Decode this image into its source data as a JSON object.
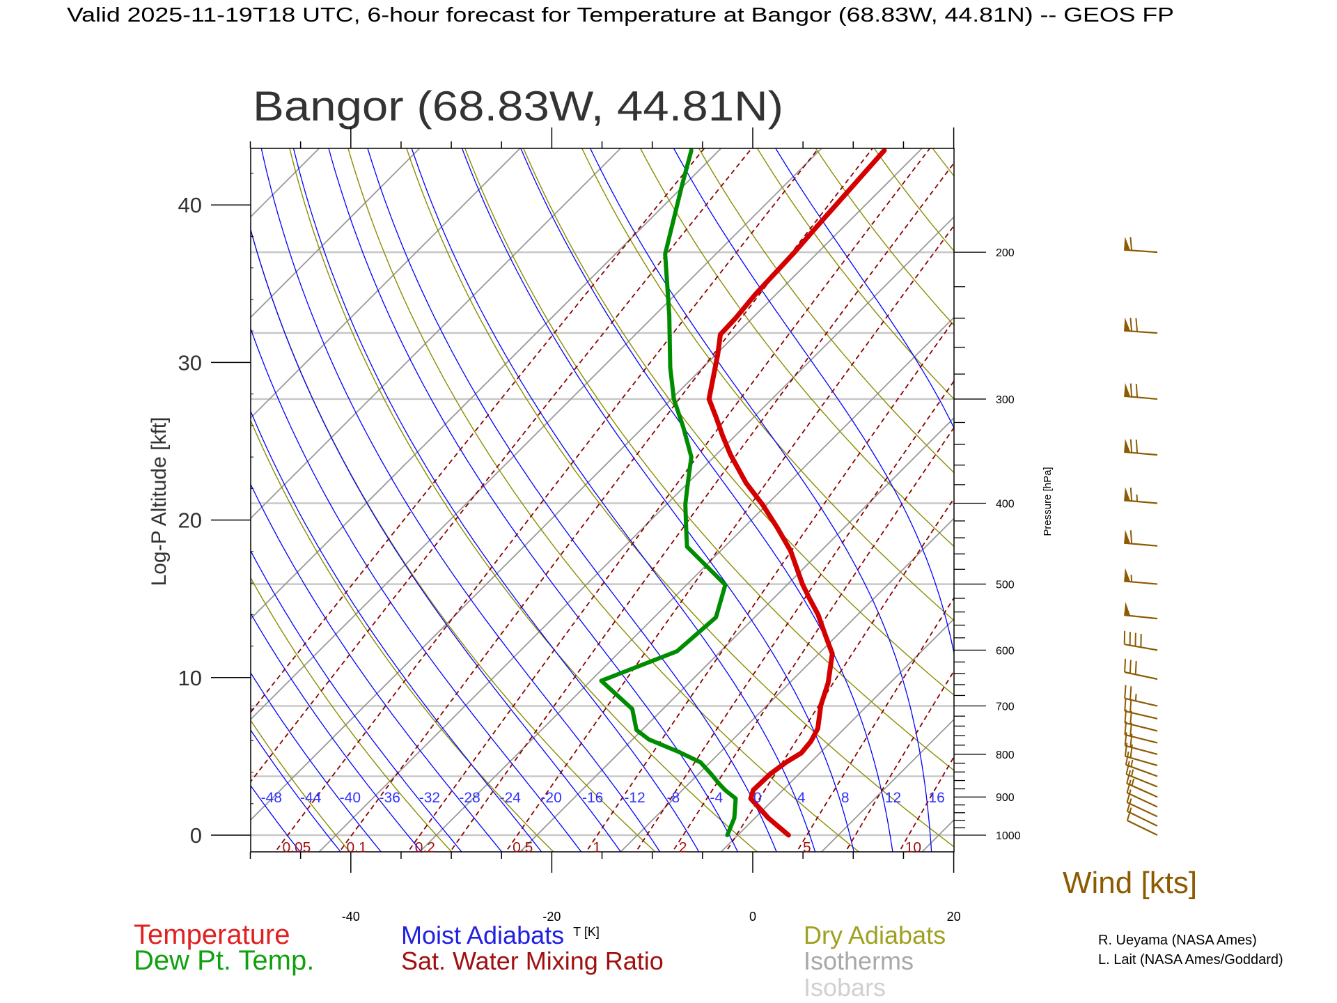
{
  "header": {
    "title": "Valid 2025-11-19T18 UTC, 6-hour forecast for Temperature at Bangor (68.83W, 44.81N) -- GEOS FP"
  },
  "chart_data": {
    "type": "line",
    "subtype": "skew-T log-P diagram",
    "title": "Bangor (68.83W, 44.81N)",
    "xlabel": "T [K]",
    "ylabel_left": "Log-P Altitude [kft]",
    "ylabel_right": "Pressure [hPa]",
    "x_ticks": [
      "-40",
      "-20",
      "0",
      "20"
    ],
    "x_tick_values": [
      -40,
      -20,
      0,
      20
    ],
    "xlim": [
      -50,
      20
    ],
    "altitude_ticks": [
      "0",
      "10",
      "20",
      "30",
      "40"
    ],
    "altitude_tick_values": [
      0,
      10,
      20,
      30,
      40
    ],
    "pressure_ticks": [
      "200",
      "300",
      "400",
      "500",
      "600",
      "700",
      "800",
      "900",
      "1000"
    ],
    "pressure_tick_values": [
      200,
      300,
      400,
      500,
      600,
      700,
      800,
      900,
      1000
    ],
    "pressure_range_hpa": [
      151,
      1047
    ],
    "isobars_hpa": [
      1000,
      850,
      700,
      500,
      400,
      300,
      250,
      200
    ],
    "isotherm_step_k": 10,
    "dry_adiabats_theta_k": [
      200,
      210,
      220,
      230,
      240,
      250,
      260,
      270,
      280,
      290,
      300,
      310,
      320,
      330,
      340,
      350,
      360,
      370,
      380,
      390,
      400,
      410,
      420,
      430,
      440,
      450,
      460,
      470,
      480,
      490,
      500
    ],
    "moist_adiabats_thetaw_c": [
      -48,
      -44,
      -40,
      -36,
      -32,
      -28,
      -24,
      -20,
      -16,
      -12,
      -8,
      -4,
      0,
      4,
      8,
      12,
      16,
      20,
      24
    ],
    "moist_adiabat_labels": [
      "-48",
      "-44",
      "-40",
      "-36",
      "-32",
      "-28",
      "-24",
      "-20",
      "-16",
      "-12",
      "-8",
      "-4",
      "0",
      "4",
      "8",
      "12",
      "16"
    ],
    "mixing_ratio_lines_gkg": [
      0.01,
      0.02,
      0.05,
      0.1,
      0.2,
      0.3,
      0.5,
      1,
      1.5,
      2,
      3,
      5,
      7,
      10,
      15,
      20,
      30
    ],
    "mixing_ratio_labels": [
      "0.05",
      "0.1",
      "0.2",
      "0.5",
      "1",
      "2",
      "5",
      "10"
    ],
    "series": [
      {
        "name": "Temperature",
        "color": "#d40000",
        "points": [
          [
            1000,
            1.9
          ],
          [
            954,
            -1.8
          ],
          [
            904,
            -5.5
          ],
          [
            883,
            -6.1
          ],
          [
            844,
            -6.0
          ],
          [
            818,
            -5.6
          ],
          [
            797,
            -5.0
          ],
          [
            772,
            -5.2
          ],
          [
            745,
            -5.8
          ],
          [
            699,
            -7.8
          ],
          [
            657,
            -9.3
          ],
          [
            606,
            -11.8
          ],
          [
            575,
            -14.4
          ],
          [
            544,
            -17.1
          ],
          [
            519,
            -19.7
          ],
          [
            500,
            -21.7
          ],
          [
            478,
            -23.9
          ],
          [
            456,
            -26.2
          ],
          [
            428,
            -29.8
          ],
          [
            402,
            -33.5
          ],
          [
            378,
            -37.4
          ],
          [
            350,
            -41.7
          ],
          [
            332,
            -44.4
          ],
          [
            316,
            -46.8
          ],
          [
            300,
            -49.4
          ],
          [
            281,
            -51.3
          ],
          [
            265,
            -53.0
          ],
          [
            251,
            -54.7
          ],
          [
            240,
            -54.8
          ],
          [
            225,
            -55.2
          ],
          [
            200,
            -55.5
          ],
          [
            188,
            -55.8
          ],
          [
            151,
            -56.7
          ]
        ]
      },
      {
        "name": "Dew Pt. Temp.",
        "color": "#008c00",
        "points": [
          [
            1000,
            -4.2
          ],
          [
            954,
            -5.2
          ],
          [
            904,
            -7.0
          ],
          [
            883,
            -8.9
          ],
          [
            868,
            -10.1
          ],
          [
            842,
            -12.1
          ],
          [
            818,
            -14.1
          ],
          [
            794,
            -17.4
          ],
          [
            768,
            -21.5
          ],
          [
            748,
            -23.7
          ],
          [
            706,
            -26.2
          ],
          [
            653,
            -32.1
          ],
          [
            602,
            -27.5
          ],
          [
            548,
            -27.0
          ],
          [
            501,
            -29.3
          ],
          [
            451,
            -36.9
          ],
          [
            430,
            -38.7
          ],
          [
            401,
            -41.3
          ],
          [
            373,
            -43.6
          ],
          [
            352,
            -45.4
          ],
          [
            324,
            -49.2
          ],
          [
            300,
            -52.9
          ],
          [
            275,
            -56.4
          ],
          [
            238,
            -61.7
          ],
          [
            201,
            -68.2
          ],
          [
            166,
            -73.4
          ],
          [
            151,
            -75.9
          ]
        ]
      }
    ],
    "wind": {
      "label": "Wind [kts]",
      "color": "#8c5a00",
      "barbs": [
        {
          "p": 200,
          "dir": 274,
          "speed": 60
        },
        {
          "p": 250,
          "dir": 274,
          "speed": 70
        },
        {
          "p": 300,
          "dir": 275,
          "speed": 70
        },
        {
          "p": 350,
          "dir": 275,
          "speed": 70
        },
        {
          "p": 400,
          "dir": 275,
          "speed": 65
        },
        {
          "p": 450,
          "dir": 275,
          "speed": 60
        },
        {
          "p": 500,
          "dir": 275,
          "speed": 55
        },
        {
          "p": 550,
          "dir": 276,
          "speed": 50
        },
        {
          "p": 600,
          "dir": 280,
          "speed": 40
        },
        {
          "p": 650,
          "dir": 282,
          "speed": 30
        },
        {
          "p": 700,
          "dir": 283,
          "speed": 25
        },
        {
          "p": 725,
          "dir": 283,
          "speed": 20
        },
        {
          "p": 750,
          "dir": 284,
          "speed": 20
        },
        {
          "p": 775,
          "dir": 284,
          "speed": 20
        },
        {
          "p": 800,
          "dir": 285,
          "speed": 20
        },
        {
          "p": 825,
          "dir": 286,
          "speed": 20
        },
        {
          "p": 850,
          "dir": 290,
          "speed": 15
        },
        {
          "p": 875,
          "dir": 292,
          "speed": 15
        },
        {
          "p": 900,
          "dir": 294,
          "speed": 15
        },
        {
          "p": 925,
          "dir": 295,
          "speed": 10
        },
        {
          "p": 950,
          "dir": 295,
          "speed": 10
        },
        {
          "p": 975,
          "dir": 296,
          "speed": 10
        },
        {
          "p": 1000,
          "dir": 296,
          "speed": 10
        }
      ]
    },
    "legend": {
      "temperature": "Temperature",
      "dewpoint": "Dew Pt. Temp.",
      "moist": "Moist Adiabats",
      "mixing": "Sat. Water Mixing Ratio",
      "dry": "Dry Adiabats",
      "isotherms": "Isotherms",
      "isobars": "Isobars"
    },
    "colors": {
      "temperature": "#d40000",
      "dewpoint": "#008c00",
      "moist": "#0000ff",
      "mixing": "#8b0000",
      "dry": "#8c8c00",
      "isotherms": "#999999",
      "isobars": "#c8c8c8",
      "wind": "#8c5a00"
    }
  },
  "credits": {
    "line1": "R. Ueyama (NASA Ames)",
    "line2": "L. Lait (NASA Ames/Goddard)"
  }
}
